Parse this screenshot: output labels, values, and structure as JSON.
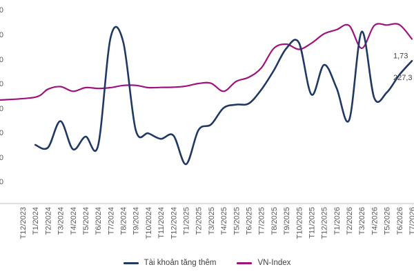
{
  "chart_data": {
    "type": "line",
    "x": [
      "T12/2023",
      "T1/2024",
      "T2/2024",
      "T3/2024",
      "T4/2024",
      "T5/2024",
      "T6/2024",
      "T7/2024",
      "T8/2024",
      "T9/2024",
      "T10/2024",
      "T11/2024",
      "T12/2024",
      "T1/2025",
      "T2/2025",
      "T3/2025",
      "T4/2025",
      "T5/2025",
      "T6/2025",
      "T7/2025",
      "T8/2025",
      "T9/2025",
      "T10/2025",
      "T11/2025",
      "T12/2025",
      "T1/2026",
      "T2/2026",
      "T3/2026",
      "T4/2026",
      "T5/2026",
      "T6/2026",
      "T7/2026"
    ],
    "series": [
      {
        "name": "Tài khoản tăng thêm",
        "color": "#1f3864",
        "values": [
          null,
          75,
          70,
          118,
          67,
          90,
          74,
          270,
          262,
          102,
          96,
          86,
          92,
          40,
          102,
          112,
          142,
          148,
          150,
          175,
          210,
          250,
          260,
          166,
          220,
          178,
          120,
          280,
          160,
          170,
          202,
          227.3
        ]
      },
      {
        "name": "VN-Index",
        "color": "#a0127d",
        "values": [
          null,
          1168,
          1245,
          1270,
          1225,
          1260,
          1252,
          1260,
          1281,
          1282,
          1260,
          1262,
          1264,
          1275,
          1300,
          1302,
          1225,
          1320,
          1360,
          1450,
          1640,
          1680,
          1630,
          1690,
          1780,
          1820,
          1860,
          1640,
          1860,
          1865,
          1868,
          1730
        ]
      }
    ],
    "data_labels": [
      {
        "series": 0,
        "index": 31,
        "text": "227,3"
      },
      {
        "series": 1,
        "index": 31,
        "text": "1,73"
      }
    ],
    "yticks": [
      "0",
      "0",
      "0",
      "0",
      "0",
      "0",
      "0",
      "0"
    ],
    "legend": "bottom-center",
    "grid": false
  }
}
